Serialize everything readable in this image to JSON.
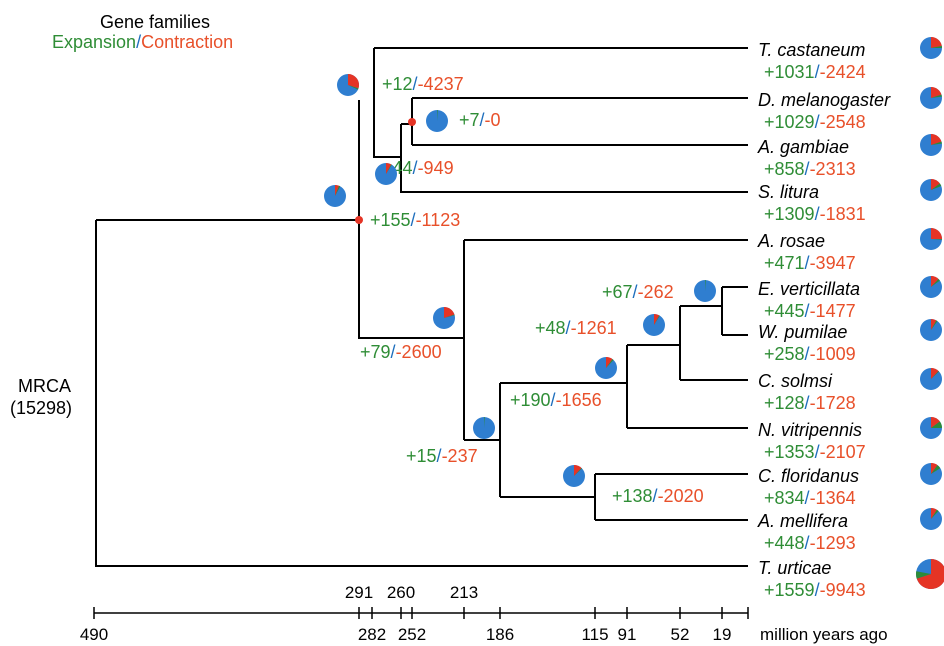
{
  "legend": {
    "title": "Gene families",
    "expansion": "Expansion",
    "sep": "/",
    "contraction": "Contraction"
  },
  "root": {
    "name": "MRCA",
    "count": "(15298)"
  },
  "colors": {
    "expansion": "#2f8d36",
    "contraction": "#e8502a",
    "pie_blue": "#2f7ed0",
    "pie_red": "#e53425",
    "pie_green": "#2e8b3a"
  },
  "species": [
    {
      "name": "T. castaneum",
      "plus": "+1031",
      "minus": "-2424",
      "pie": {
        "red": 0.22,
        "green": 0.03
      }
    },
    {
      "name": "D. melanogaster",
      "plus": "+1029",
      "minus": "-2548",
      "pie": {
        "red": 0.2,
        "green": 0.03
      }
    },
    {
      "name": "A. gambiae",
      "plus": "+858",
      "minus": "-2313",
      "pie": {
        "red": 0.2,
        "green": 0.03
      }
    },
    {
      "name": "S. litura",
      "plus": "+1309",
      "minus": "-1831",
      "pie": {
        "red": 0.15,
        "green": 0.04
      }
    },
    {
      "name": "A. rosae",
      "plus": "+471",
      "minus": "-3947",
      "pie": {
        "red": 0.25,
        "green": 0.01
      }
    },
    {
      "name": "E. verticillata",
      "plus": "+445",
      "minus": "-1477",
      "pie": {
        "red": 0.12,
        "green": 0.03
      }
    },
    {
      "name": "W. pumilae",
      "plus": "+258",
      "minus": "-1009",
      "pie": {
        "red": 0.08,
        "green": 0.02
      }
    },
    {
      "name": "C. solmsi",
      "plus": "+128",
      "minus": "-1728",
      "pie": {
        "red": 0.12,
        "green": 0.01
      }
    },
    {
      "name": "N. vitripennis",
      "plus": "+1353",
      "minus": "-2107",
      "pie": {
        "red": 0.15,
        "green": 0.1
      }
    },
    {
      "name": "C. floridanus",
      "plus": "+834",
      "minus": "-1364",
      "pie": {
        "red": 0.1,
        "green": 0.06
      }
    },
    {
      "name": "A. mellifera",
      "plus": "+448",
      "minus": "-1293",
      "pie": {
        "red": 0.09,
        "green": 0.03
      }
    },
    {
      "name": "T. urticae",
      "plus": "+1559",
      "minus": "-9943",
      "pie": {
        "red": 0.7,
        "green": 0.08
      }
    }
  ],
  "nodes": [
    {
      "plus": "+12",
      "sep": "/",
      "minus": "-4237",
      "pie": {
        "red": 0.3,
        "green": 0.02
      }
    },
    {
      "plus": "+7",
      "sep": "/",
      "minus": "-0",
      "pie": {
        "red": 0.0,
        "green": 0.01
      }
    },
    {
      "plus": "+44",
      "sep": "/",
      "minus": "-949",
      "pie": {
        "red": 0.08,
        "green": 0.01
      }
    },
    {
      "plus": "+155",
      "sep": "/",
      "minus": "-1123",
      "pie": {
        "red": 0.06,
        "green": 0.02
      }
    },
    {
      "plus": "+79",
      "sep": "/",
      "minus": "-2600",
      "pie": {
        "red": 0.2,
        "green": 0.01
      }
    },
    {
      "plus": "+67",
      "sep": "/",
      "minus": "-262",
      "pie": {
        "red": 0.0,
        "green": 0.01
      }
    },
    {
      "plus": "+48",
      "sep": "/",
      "minus": "-1261",
      "pie": {
        "red": 0.08,
        "green": 0.01
      }
    },
    {
      "plus": "+190",
      "sep": "/",
      "minus": "-1656",
      "pie": {
        "red": 0.1,
        "green": 0.02
      }
    },
    {
      "plus": "+15",
      "sep": "/",
      "minus": "-237",
      "pie": {
        "red": 0.0,
        "green": 0.01
      }
    },
    {
      "plus": "+138",
      "sep": "/",
      "minus": "-2020",
      "pie": {
        "red": 0.12,
        "green": 0.01
      }
    }
  ],
  "axis": {
    "upper_ticks": [
      "291",
      "260",
      "213"
    ],
    "lower_ticks": [
      "490",
      "282",
      "252",
      "186",
      "115",
      "91",
      "52",
      "19"
    ],
    "unit": "million years ago"
  }
}
